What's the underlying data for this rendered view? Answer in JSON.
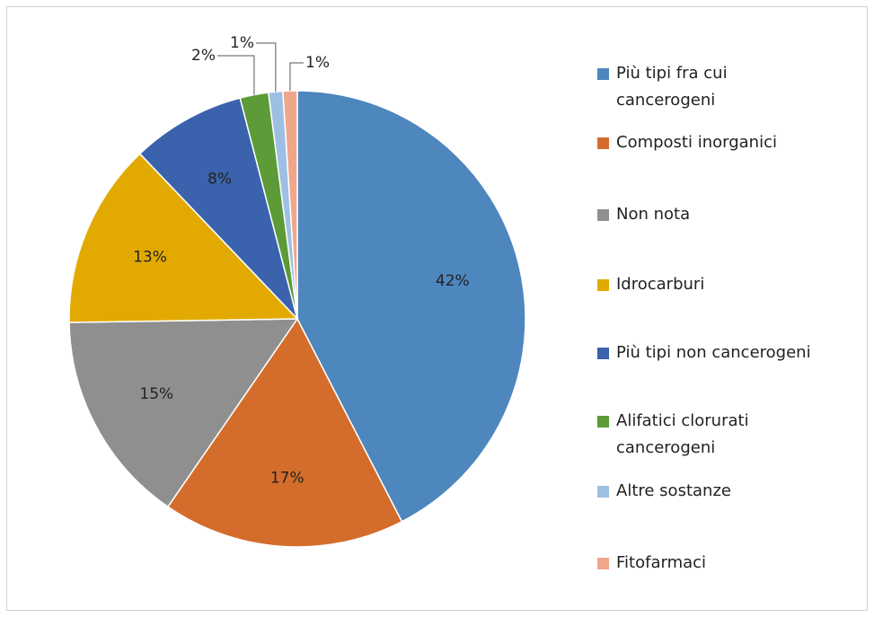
{
  "chart_data": {
    "type": "pie",
    "categories": [
      "Più tipi fra cui cancerogeni",
      "Composti inorganici",
      "Non nota",
      "Idrocarburi",
      "Più tipi non cancerogeni",
      "Alifatici clorurati cancerogeni",
      "Altre sostanze",
      "Fitofarmaci"
    ],
    "values": [
      42,
      17,
      15,
      13,
      8,
      2,
      1,
      1
    ],
    "value_labels": [
      "42%",
      "17%",
      "15%",
      "13%",
      "8%",
      "2%",
      "1%",
      "1%"
    ],
    "colors": [
      "#4e86be",
      "#d46d2b",
      "#8f8f8f",
      "#e2aa00",
      "#3a62ad",
      "#5c9b37",
      "#9dbfe3",
      "#f0a68b"
    ],
    "legend": "right"
  }
}
